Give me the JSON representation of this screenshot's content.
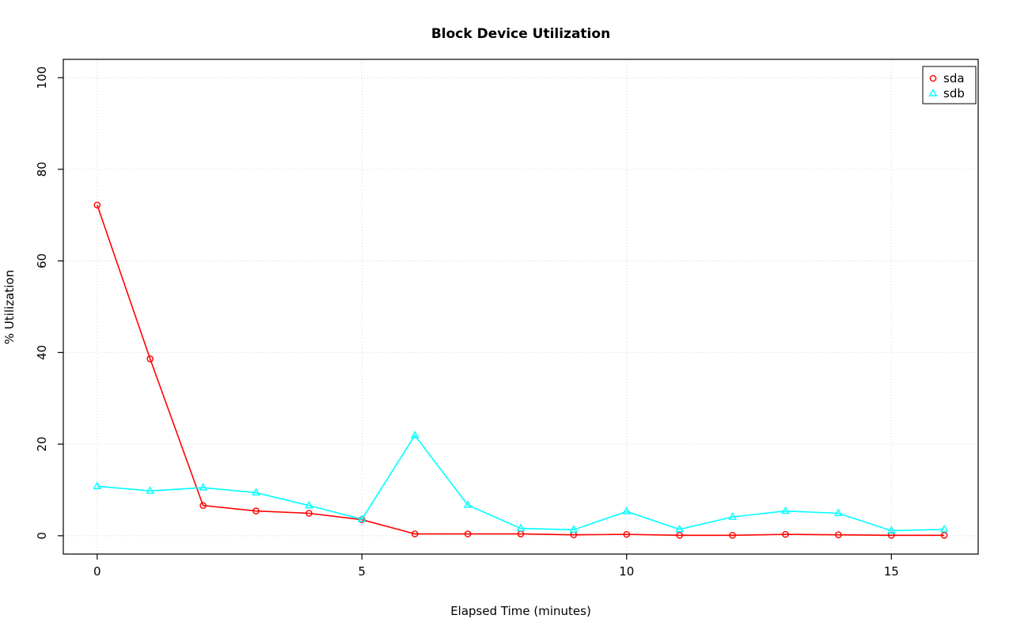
{
  "title": "Block Device Utilization",
  "chart_data": {
    "type": "line",
    "title": "Block Device Utilization",
    "xlabel": "Elapsed Time (minutes)",
    "ylabel": "% Utilization",
    "xlim": [
      0,
      16
    ],
    "ylim": [
      0,
      100
    ],
    "x_ticks": [
      0,
      5,
      10,
      15
    ],
    "y_ticks": [
      0,
      20,
      40,
      60,
      80,
      100
    ],
    "grid": true,
    "grid_color": "#d3d3d3",
    "legend_position": "top-right",
    "x": [
      0,
      1,
      2,
      3,
      4,
      5,
      6,
      7,
      8,
      9,
      10,
      11,
      12,
      13,
      14,
      15,
      16
    ],
    "series": [
      {
        "name": "sda",
        "color": "#ff0000",
        "marker": "circle",
        "values": [
          72.2,
          38.6,
          6.6,
          5.4,
          4.9,
          3.5,
          0.4,
          0.4,
          0.4,
          0.2,
          0.3,
          0.1,
          0.1,
          0.3,
          0.2,
          0.1,
          0.1
        ]
      },
      {
        "name": "sdb",
        "color": "#00ffff",
        "marker": "triangle",
        "values": [
          10.8,
          9.8,
          10.5,
          9.4,
          6.6,
          3.6,
          21.9,
          6.7,
          1.6,
          1.3,
          5.3,
          1.4,
          4.1,
          5.4,
          4.9,
          1.1,
          1.4
        ]
      }
    ]
  },
  "legend": {
    "items": [
      {
        "label": "sda"
      },
      {
        "label": "sdb"
      }
    ]
  }
}
